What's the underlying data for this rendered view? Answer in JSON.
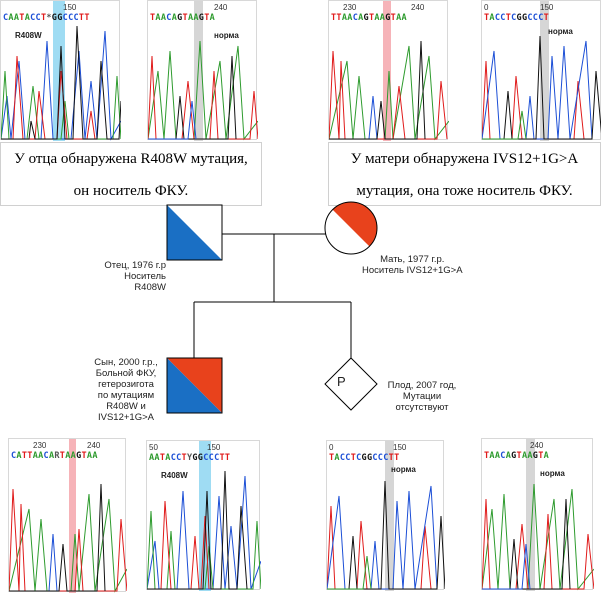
{
  "father_caption": {
    "line1": "У отца обнаружена R408W мутация,",
    "line2": "он носитель ФКУ."
  },
  "mother_caption": {
    "line1": "У матери обнаружена IVS12+1G>A",
    "line2": "мутация, она тоже носитель ФКУ."
  },
  "pedigree": {
    "father": {
      "line1": "Отец, 1976 г.р",
      "line2": "Носитель R408W"
    },
    "mother": {
      "line1": "Мать, 1977 г.р.",
      "line2": "Носитель IVS12+1G>A"
    },
    "son": {
      "line1": "Сын, 2000 г.р.,",
      "line2": "Больной ФКУ,",
      "line3": "гетерозигота",
      "line4": "по мутациям",
      "line5": "R408W и",
      "line6": "IVS12+1G>A"
    },
    "fetus": {
      "symbol": "P",
      "line1": "Плод, 2007 год,",
      "line2": "Мутации",
      "line3": "отсутствуют"
    }
  },
  "chromatograms": {
    "top1": {
      "num1": "150",
      "sequence": "CAATACCT*GGCCCTT",
      "label": "R408W"
    },
    "top2": {
      "num1": "240",
      "sequence": "TAACAGTAAGTA",
      "label": "норма"
    },
    "top3": {
      "num1": "230",
      "num2": "240",
      "sequence": "TTAACAGTAAGTAA"
    },
    "top4": {
      "num0": "0",
      "num1": "150",
      "sequence": "TACCTCGGCCCT",
      "label": "норма"
    },
    "bot1": {
      "num1": "230",
      "num2": "240",
      "sequence": "CATTAACARTAAGTAA"
    },
    "bot2": {
      "num0": "50",
      "num1": "150",
      "sequence": "AATACCTYGGCCCTT",
      "label": "R408W"
    },
    "bot3": {
      "num0": "0",
      "num1": "150",
      "sequence": "TACCTCGGCCCTT",
      "label": "норма"
    },
    "bot4": {
      "num1": "240",
      "sequence": "TAACAGTAAGTA",
      "label": "норма"
    }
  },
  "colors": {
    "blue": "#1a6fc4",
    "red": "#e8421c",
    "base_A": "#2e9b2e",
    "base_C": "#1c4fd6",
    "base_G": "#111111",
    "base_T": "#e01b1b",
    "highlight_mut": "#7fd0ef",
    "highlight_pink": "#f5a6ab",
    "highlight_gray": "#cccccc"
  }
}
